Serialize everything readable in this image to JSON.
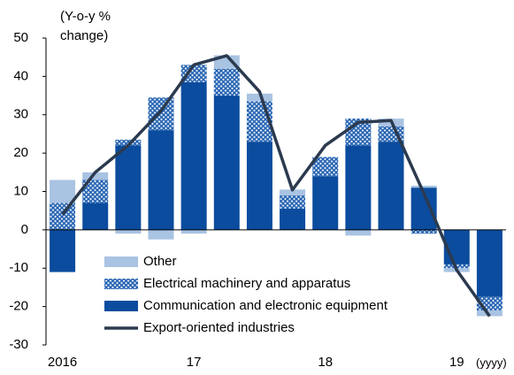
{
  "chart_data": {
    "type": "bar",
    "ylabel": "(Y-o-y % change)",
    "xlabel": "(yyyy)",
    "categories": [
      "2016",
      null,
      null,
      null,
      "17",
      null,
      null,
      null,
      "18",
      null,
      null,
      null,
      "19",
      null
    ],
    "series": [
      {
        "name": "Communication and electronic equipment",
        "color": "#0b4c9e",
        "values": [
          -11,
          7,
          22,
          26,
          38.5,
          35,
          23,
          5.5,
          14,
          22,
          23,
          11,
          -9,
          -17.5
        ]
      },
      {
        "name": "Electrical machinery and apparatus",
        "color": "#1f5fb0",
        "values": [
          7,
          6,
          1.5,
          8.5,
          4.5,
          7,
          10.5,
          3.5,
          5,
          7,
          4,
          -1,
          -1,
          -3.5
        ]
      },
      {
        "name": "Other",
        "color": "#a9c3e2",
        "values": [
          6,
          2,
          -1,
          -2.5,
          -1,
          3.5,
          2,
          1.5,
          0,
          -1.5,
          2,
          0.5,
          -1,
          -1.5
        ]
      }
    ],
    "line_series": {
      "name": "Export-oriented industries",
      "color": "#2b3a4f",
      "values": [
        4,
        15,
        22,
        31,
        43,
        45.4,
        36,
        10.4,
        22,
        28,
        28.5,
        9.5,
        -10.5,
        -22.5
      ]
    },
    "ylim": [
      -30,
      50
    ],
    "yticks": [
      -30,
      -20,
      -10,
      0,
      10,
      20,
      30,
      40,
      50
    ]
  }
}
